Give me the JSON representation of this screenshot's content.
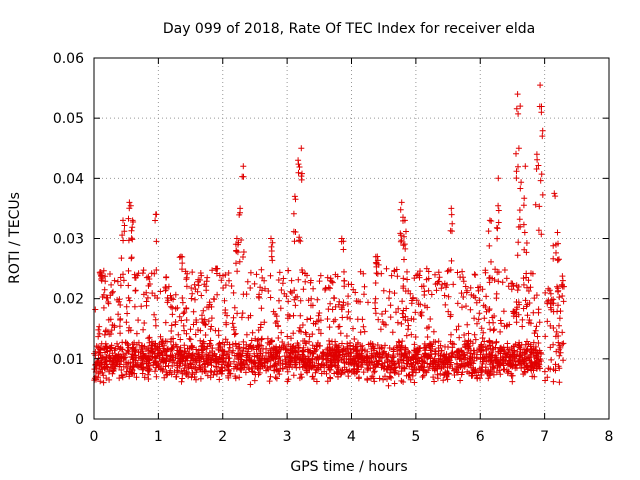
{
  "chart_data": {
    "type": "scatter",
    "title": "Day 099 of 2018, Rate Of TEC Index for receiver elda",
    "xlabel": "GPS time / hours",
    "ylabel": "ROTI / TECUs",
    "xlim": [
      0,
      8
    ],
    "ylim": [
      0,
      0.06
    ],
    "xticks": [
      "0",
      "1",
      "2",
      "3",
      "4",
      "5",
      "6",
      "7",
      "8"
    ],
    "yticks": [
      "0",
      "0.01",
      "0.02",
      "0.03",
      "0.04",
      "0.05",
      "0.06"
    ],
    "grid": true,
    "marker": "+",
    "color": "#e00000",
    "data_range": [
      0,
      7.3
    ],
    "baseline": {
      "typical_low": 0.006,
      "typical_high": 0.014,
      "upper_envelope": 0.025
    },
    "notable_points": [
      {
        "x": 0.12,
        "y": 0.023
      },
      {
        "x": 0.45,
        "y": 0.033
      },
      {
        "x": 0.55,
        "y": 0.036
      },
      {
        "x": 0.6,
        "y": 0.033
      },
      {
        "x": 0.97,
        "y": 0.034
      },
      {
        "x": 1.35,
        "y": 0.027
      },
      {
        "x": 1.9,
        "y": 0.025
      },
      {
        "x": 2.22,
        "y": 0.03
      },
      {
        "x": 2.27,
        "y": 0.035
      },
      {
        "x": 2.32,
        "y": 0.042
      },
      {
        "x": 2.75,
        "y": 0.03
      },
      {
        "x": 3.12,
        "y": 0.037
      },
      {
        "x": 3.17,
        "y": 0.043
      },
      {
        "x": 3.22,
        "y": 0.045
      },
      {
        "x": 3.85,
        "y": 0.03
      },
      {
        "x": 4.4,
        "y": 0.027
      },
      {
        "x": 4.78,
        "y": 0.036
      },
      {
        "x": 4.83,
        "y": 0.033
      },
      {
        "x": 5.55,
        "y": 0.035
      },
      {
        "x": 6.15,
        "y": 0.033
      },
      {
        "x": 6.28,
        "y": 0.04
      },
      {
        "x": 6.58,
        "y": 0.054
      },
      {
        "x": 6.62,
        "y": 0.052
      },
      {
        "x": 6.6,
        "y": 0.045
      },
      {
        "x": 6.7,
        "y": 0.042
      },
      {
        "x": 6.88,
        "y": 0.044
      },
      {
        "x": 6.93,
        "y": 0.0555
      },
      {
        "x": 6.95,
        "y": 0.051
      },
      {
        "x": 7.15,
        "y": 0.0375
      },
      {
        "x": 7.2,
        "y": 0.031
      },
      {
        "x": 7.28,
        "y": 0.022
      }
    ]
  }
}
